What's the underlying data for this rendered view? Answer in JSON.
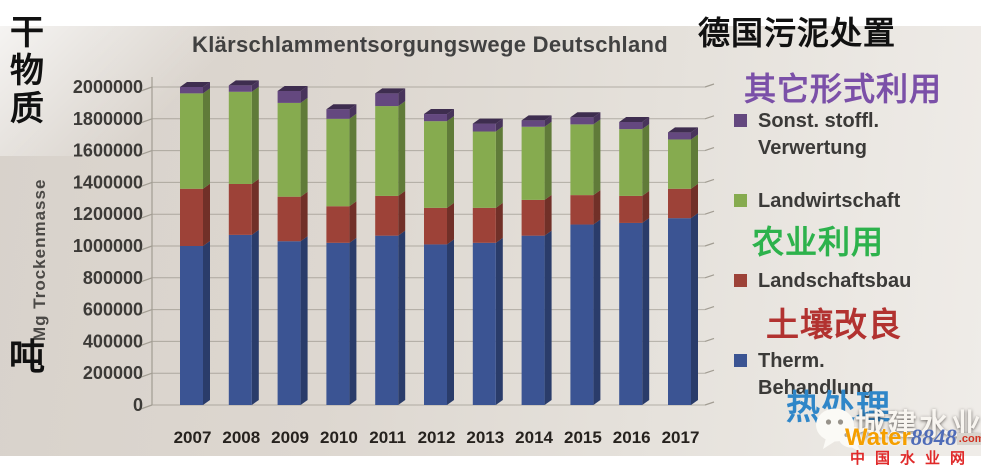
{
  "chart_data": {
    "type": "bar",
    "stacked": true,
    "title": "Klärschlammentsorgungswege Deutschland",
    "xlabel": "",
    "ylabel": "Mg Trockenmasse",
    "categories": [
      2007,
      2008,
      2009,
      2010,
      2011,
      2012,
      2013,
      2014,
      2015,
      2016,
      2017
    ],
    "series": [
      {
        "name": "Therm. Behandlung",
        "color": "#3b5493",
        "values": [
          1000000,
          1070000,
          1030000,
          1020000,
          1065000,
          1010000,
          1020000,
          1065000,
          1135000,
          1145000,
          1175000
        ]
      },
      {
        "name": "Landschaftsbau",
        "color": "#9d4238",
        "values": [
          360000,
          320000,
          280000,
          230000,
          250000,
          230000,
          220000,
          225000,
          185000,
          170000,
          185000
        ]
      },
      {
        "name": "Landwirtschaft",
        "color": "#86ab4f",
        "values": [
          600000,
          580000,
          590000,
          550000,
          565000,
          545000,
          480000,
          460000,
          445000,
          420000,
          310000
        ]
      },
      {
        "name": "Sonst. stoffl. Verwertung",
        "color": "#64487f",
        "values": [
          40000,
          40000,
          75000,
          60000,
          80000,
          45000,
          50000,
          40000,
          45000,
          45000,
          45000
        ]
      }
    ],
    "ylim": [
      0,
      2000000
    ],
    "ytick_step": 200000,
    "grid": true,
    "legend_position": "right",
    "effect_3d": true
  },
  "annotations": {
    "dry_matter_label": "干物质",
    "ton_label": "吨",
    "header_cn": "德国污泥处置",
    "other_use_cn": "其它形式利用",
    "agriculture_cn": "农业利用",
    "soil_improvement_cn": "土壤改良",
    "thermal_cn": "热处理",
    "colors": {
      "header": "#111111",
      "other": "#7b50a8",
      "agriculture": "#2db24c",
      "soil": "#b23230",
      "thermal": "#2f86c8"
    }
  },
  "watermark": {
    "brand": "城建水业",
    "logo_word": "Water",
    "logo_number": "8848",
    "logo_tld": ".com",
    "site": "中国水业网",
    "colors": {
      "brand": "#f8f5f0",
      "word": "#f59f00",
      "number": "#4f6cb8",
      "tld": "#d23222",
      "site": "#e02a2a"
    }
  }
}
